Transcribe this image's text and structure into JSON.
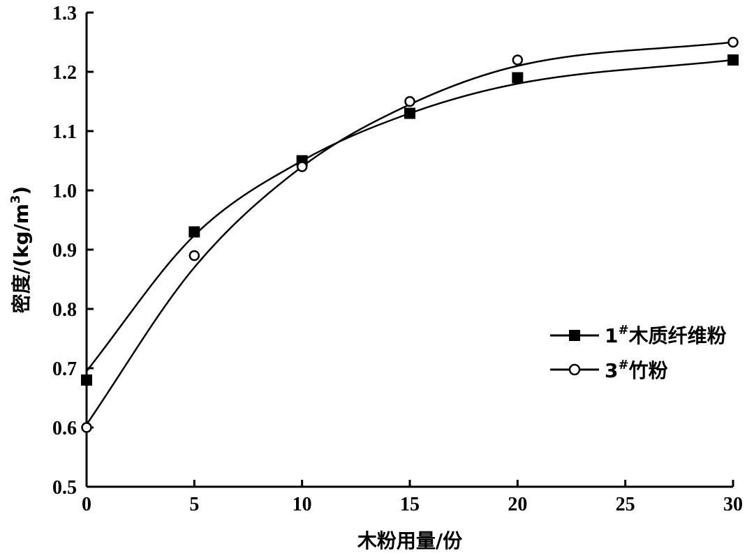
{
  "chart_data": {
    "type": "scatter",
    "title": "",
    "xlabel": "木粉用量/份",
    "ylabel_prefix": "密度/(kg/m",
    "ylabel_sup": "3",
    "ylabel_suffix": ")",
    "xlim": [
      0,
      30
    ],
    "ylim": [
      0.5,
      1.3
    ],
    "xticks": [
      0,
      5,
      10,
      15,
      20,
      25,
      30
    ],
    "yticks": [
      0.5,
      0.6,
      0.7,
      0.8,
      0.9,
      1.0,
      1.1,
      1.2,
      1.3
    ],
    "xtick_labels": [
      "0",
      "5",
      "10",
      "15",
      "20",
      "25",
      "30"
    ],
    "ytick_labels": [
      "0.5",
      "0.6",
      "0.7",
      "0.8",
      "0.9",
      "1.0",
      "1.1",
      "1.2",
      "1.3"
    ],
    "grid": false,
    "legend_position": "right",
    "trendline": "smooth fitted curve",
    "series": [
      {
        "name": "1#木质纤维粉",
        "name_num": "1",
        "name_sup": "#",
        "name_text": "木质纤维粉",
        "marker": "filled-square",
        "x": [
          0,
          5,
          10,
          15,
          20,
          30
        ],
        "y": [
          0.68,
          0.93,
          1.05,
          1.13,
          1.19,
          1.22
        ],
        "fit": [
          0.695,
          0.924,
          1.05,
          1.13,
          1.18,
          1.22
        ]
      },
      {
        "name": "3#竹粉",
        "name_num": "3",
        "name_sup": "#",
        "name_text": "竹粉",
        "marker": "open-circle",
        "x": [
          0,
          5,
          10,
          15,
          20,
          30
        ],
        "y": [
          0.6,
          0.89,
          1.04,
          1.15,
          1.22,
          1.25
        ],
        "fit": [
          0.605,
          0.87,
          1.04,
          1.145,
          1.21,
          1.25
        ]
      }
    ]
  }
}
